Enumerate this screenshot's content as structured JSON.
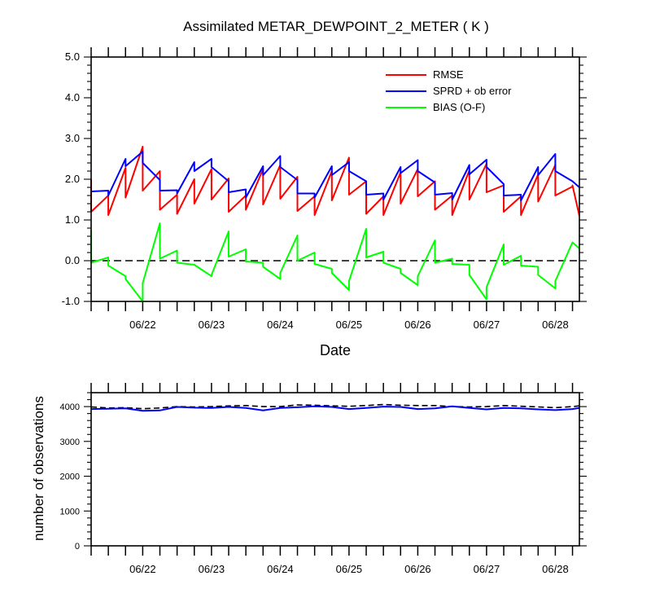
{
  "chart_data": [
    {
      "type": "line",
      "title": "Assimilated METAR_DEWPOINT_2_METER ( K )",
      "xlabel": "Date",
      "ylabel": "",
      "xlim": [
        0,
        7.1
      ],
      "ylim": [
        -1.0,
        5.0
      ],
      "yticks": [
        "-1.0",
        "0.0",
        "1.0",
        "2.0",
        "3.0",
        "4.0",
        "5.0"
      ],
      "xtick_labels": [
        "06/22",
        "06/23",
        "06/24",
        "06/25",
        "06/26",
        "06/27",
        "06/28"
      ],
      "xtick_positions": [
        0.75,
        1.75,
        2.75,
        3.75,
        4.75,
        5.75,
        6.75
      ],
      "reference_line": {
        "y": 0,
        "style": "dashed",
        "color": "#000000"
      },
      "legend": {
        "placement": "top-right"
      },
      "series": [
        {
          "name": "RMSE",
          "color": "#ff0000",
          "x": [
            0,
            0,
            0.25,
            0.25,
            0.5,
            0.5,
            0.75,
            0.75,
            1,
            1,
            1.25,
            1.25,
            1.5,
            1.5,
            1.75,
            1.75,
            2,
            2,
            2.25,
            2.25,
            2.5,
            2.5,
            2.75,
            2.75,
            3,
            3,
            3.25,
            3.25,
            3.5,
            3.5,
            3.75,
            3.75,
            4,
            4,
            4.25,
            4.25,
            4.5,
            4.5,
            4.75,
            4.75,
            5,
            5,
            5.25,
            5.25,
            5.5,
            5.5,
            5.75,
            5.75,
            6,
            6,
            6.25,
            6.25,
            6.5,
            6.5,
            6.75,
            6.75,
            7,
            7,
            7.1
          ],
          "values": [
            2.0,
            1.2,
            1.6,
            1.12,
            2.28,
            1.55,
            2.8,
            1.72,
            2.2,
            1.25,
            1.62,
            1.15,
            2.0,
            1.4,
            2.25,
            1.5,
            2.02,
            1.2,
            1.6,
            1.25,
            2.25,
            1.38,
            2.35,
            1.52,
            2.06,
            1.22,
            1.58,
            1.12,
            2.2,
            1.48,
            2.53,
            1.62,
            1.95,
            1.15,
            1.58,
            1.12,
            2.17,
            1.4,
            2.25,
            1.58,
            1.95,
            1.25,
            1.6,
            1.12,
            2.22,
            1.5,
            2.38,
            1.68,
            1.85,
            1.2,
            1.58,
            1.12,
            2.12,
            1.45,
            2.35,
            1.6,
            1.82,
            1.85,
            1.1
          ]
        },
        {
          "name": "SPRD + ob error",
          "color": "#0000ff",
          "x": [
            0,
            0.25,
            0.25,
            0.5,
            0.5,
            0.75,
            0.75,
            1,
            1,
            1.25,
            1.25,
            1.5,
            1.5,
            1.75,
            1.75,
            2,
            2,
            2.25,
            2.25,
            2.5,
            2.5,
            2.75,
            2.75,
            3,
            3,
            3.25,
            3.25,
            3.5,
            3.5,
            3.75,
            3.75,
            4,
            4,
            4.25,
            4.25,
            4.5,
            4.5,
            4.75,
            4.75,
            5,
            5,
            5.25,
            5.25,
            5.5,
            5.5,
            5.75,
            5.75,
            6,
            6,
            6.25,
            6.25,
            6.5,
            6.5,
            6.75,
            6.75,
            7,
            7.1
          ],
          "values": [
            1.7,
            1.72,
            1.6,
            2.5,
            2.32,
            2.68,
            2.4,
            1.98,
            1.72,
            1.73,
            1.65,
            2.42,
            2.2,
            2.5,
            2.3,
            1.95,
            1.68,
            1.75,
            1.55,
            2.32,
            2.1,
            2.57,
            2.3,
            1.98,
            1.65,
            1.65,
            1.55,
            2.32,
            2.1,
            2.42,
            2.2,
            1.95,
            1.62,
            1.65,
            1.5,
            2.3,
            2.15,
            2.47,
            2.2,
            1.92,
            1.62,
            1.66,
            1.5,
            2.35,
            2.12,
            2.48,
            2.3,
            1.88,
            1.6,
            1.62,
            1.48,
            2.3,
            2.1,
            2.62,
            2.2,
            1.95,
            1.8
          ]
        },
        {
          "name": "BIAS (O-F)",
          "color": "#00ff00",
          "x": [
            0,
            0,
            0.25,
            0.25,
            0.5,
            0.5,
            0.75,
            0.75,
            1,
            1,
            1.25,
            1.25,
            1.5,
            1.5,
            1.75,
            1.75,
            2,
            2,
            2.25,
            2.25,
            2.5,
            2.5,
            2.75,
            2.75,
            3,
            3,
            3.25,
            3.25,
            3.5,
            3.5,
            3.75,
            3.75,
            4,
            4,
            4.25,
            4.25,
            4.5,
            4.5,
            4.75,
            4.75,
            5,
            5,
            5.25,
            5.25,
            5.5,
            5.5,
            5.75,
            5.75,
            6,
            6,
            6.25,
            6.25,
            6.5,
            6.5,
            6.75,
            6.75,
            7,
            7.1
          ],
          "values": [
            0.75,
            -0.05,
            0.08,
            -0.12,
            -0.38,
            -0.45,
            -1.0,
            -0.55,
            0.92,
            0.05,
            0.25,
            -0.05,
            -0.1,
            -0.1,
            -0.38,
            -0.35,
            0.72,
            0.1,
            0.28,
            -0.02,
            -0.05,
            -0.15,
            -0.45,
            -0.3,
            0.62,
            0.0,
            0.2,
            -0.08,
            -0.2,
            -0.3,
            -0.72,
            -0.5,
            0.78,
            0.08,
            0.22,
            -0.05,
            -0.2,
            -0.3,
            -0.6,
            -0.38,
            0.5,
            -0.05,
            0.05,
            -0.08,
            -0.1,
            -0.35,
            -0.95,
            -0.65,
            0.4,
            -0.1,
            0.12,
            -0.12,
            -0.15,
            -0.35,
            -0.68,
            -0.5,
            0.45,
            0.3
          ]
        }
      ]
    },
    {
      "type": "line",
      "title": "",
      "xlabel": "",
      "ylabel": "number of observations",
      "xlim": [
        0,
        7.1
      ],
      "ylim": [
        0,
        4400
      ],
      "yticks": [
        "0",
        "1000",
        "2000",
        "3000",
        "4000"
      ],
      "xtick_labels": [
        "06/22",
        "06/23",
        "06/24",
        "06/25",
        "06/26",
        "06/27",
        "06/28"
      ],
      "xtick_positions": [
        0.75,
        1.75,
        2.75,
        3.75,
        4.75,
        5.75,
        6.75
      ],
      "series": [
        {
          "style": "dashed",
          "color": "#000000",
          "x": [
            0,
            0.25,
            0.5,
            0.75,
            1,
            1.25,
            1.5,
            1.75,
            2,
            2.25,
            2.5,
            2.75,
            3,
            3.25,
            3.5,
            3.75,
            4,
            4.25,
            4.5,
            4.75,
            5,
            5.25,
            5.5,
            5.75,
            6,
            6.25,
            6.5,
            6.75,
            7,
            7.1
          ],
          "values": [
            3990,
            3960,
            3970,
            3940,
            3960,
            4000,
            3990,
            4000,
            4020,
            4030,
            4000,
            4000,
            4050,
            4040,
            4020,
            4010,
            4030,
            4060,
            4040,
            4030,
            4030,
            4000,
            3990,
            4000,
            4030,
            4010,
            3990,
            3970,
            4000,
            4020
          ]
        },
        {
          "style": "solid",
          "color": "#0000ff",
          "x": [
            0,
            0.25,
            0.5,
            0.75,
            1,
            1.25,
            1.5,
            1.75,
            2,
            2.25,
            2.5,
            2.75,
            3,
            3.25,
            3.5,
            3.75,
            4,
            4.25,
            4.5,
            4.75,
            5,
            5.25,
            5.5,
            5.75,
            6,
            6.25,
            6.5,
            6.75,
            7,
            7.1
          ],
          "values": [
            3930,
            3940,
            3950,
            3880,
            3890,
            3990,
            3970,
            3960,
            3990,
            3960,
            3890,
            3960,
            3980,
            4010,
            3990,
            3930,
            3960,
            4000,
            3990,
            3930,
            3950,
            4010,
            3960,
            3920,
            3960,
            3950,
            3920,
            3900,
            3930,
            3960
          ]
        }
      ]
    }
  ]
}
